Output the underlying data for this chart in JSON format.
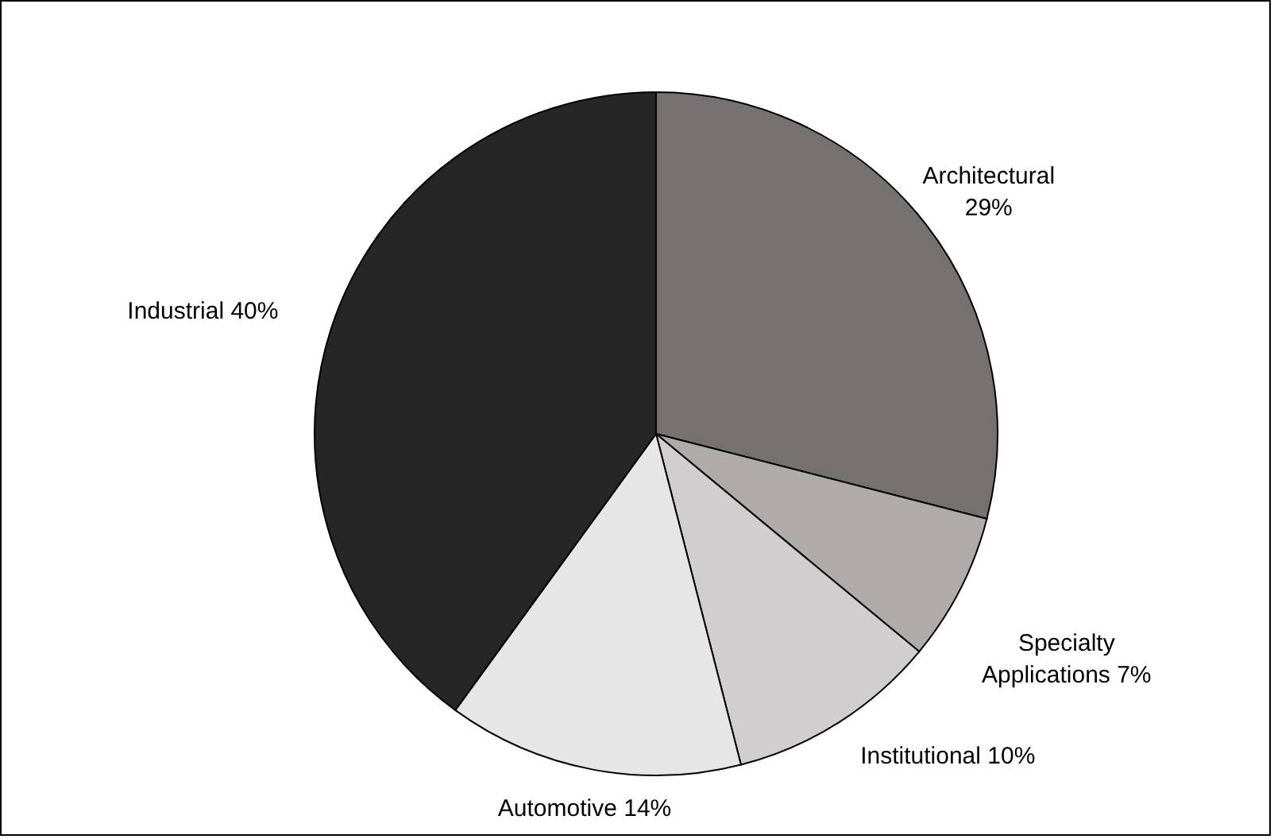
{
  "chart_data": {
    "type": "pie",
    "categories": [
      "Architectural",
      "Specialty Applications",
      "Institutional",
      "Automotive",
      "Industrial"
    ],
    "values": [
      29,
      7,
      10,
      14,
      40
    ],
    "value_labels": [
      "29%",
      "7%",
      "10%",
      "14%",
      "40%"
    ],
    "colors": [
      "#767171",
      "#afabab",
      "#d0cece",
      "#e7e6e6",
      "#262626"
    ],
    "legend": false
  }
}
